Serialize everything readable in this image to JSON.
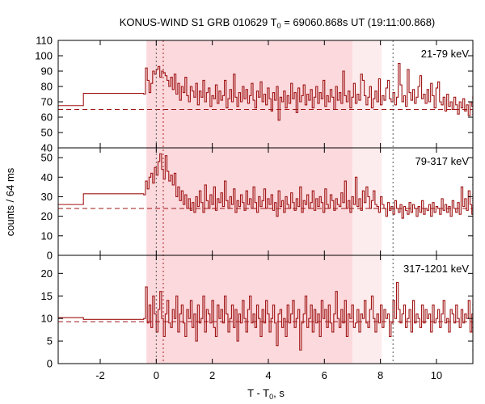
{
  "chart_data": {
    "type": "line",
    "title": "KONUS-WIND S1 GRB 010629 T",
    "title_sub": "0",
    "title_rest": " = 69060.868s UT (19:11:00.868)",
    "xlabel": "T - T",
    "xlabel_sub": "0",
    "xlabel_rest": ", s",
    "ylabel": "counts / 64 ms",
    "xlim": [
      -3.5,
      11.3
    ],
    "xticks": [
      -2,
      0,
      2,
      4,
      6,
      8,
      10
    ],
    "xtick_labels": [
      "-2",
      "0",
      "2",
      "4",
      "6",
      "8",
      "10"
    ],
    "shaded_intervals": [
      {
        "start": -0.35,
        "end": 7.0,
        "color": "#fbd9dd"
      },
      {
        "start": 7.0,
        "end": 8.05,
        "color": "#fdeced"
      }
    ],
    "vlines": [
      {
        "x": 0.0,
        "style": "dotted",
        "color": "#555555"
      },
      {
        "x": 0.25,
        "style": "dotted",
        "color": "#aa2222"
      },
      {
        "x": 8.45,
        "style": "dotted",
        "color": "#555555"
      }
    ],
    "line_color": "#a01515",
    "panels": [
      {
        "band": "21-79 keV",
        "ylim": [
          40,
          110
        ],
        "yticks": [
          40,
          50,
          60,
          70,
          80,
          90,
          100,
          110
        ],
        "ytick_labels": [
          "40",
          "50",
          "60",
          "70",
          "80",
          "90",
          "100",
          "110"
        ],
        "background": 65.0,
        "pre_steps": [
          {
            "x0": -3.5,
            "x1": -2.6,
            "y": 67.5
          },
          {
            "x0": -2.6,
            "x1": -0.45,
            "y": 75.5
          }
        ],
        "trigger_x0": -0.45,
        "dt": 0.064,
        "series": [
          {
            "values": [
              75,
              92,
              84,
              76,
              82,
              90,
              88,
              91,
              93,
              86,
              90,
              89,
              87,
              84,
              80,
              86,
              78,
              88,
              75,
              82,
              71,
              80,
              76,
              86,
              74,
              70,
              80,
              77,
              73,
              82,
              68,
              77,
              73,
              84,
              70,
              76,
              79,
              67,
              74,
              72,
              81,
              69,
              77,
              71,
              74,
              84,
              66,
              72,
              78,
              70,
              88,
              73,
              67,
              76,
              70,
              80,
              72,
              78,
              69,
              74,
              82,
              71,
              66,
              77,
              73,
              83,
              70,
              75,
              68,
              79,
              72,
              64,
              76,
              71,
              80,
              58,
              73,
              70,
              77,
              66,
              74,
              69,
              82,
              72,
              76,
              63,
              79,
              70,
              74,
              81,
              68,
              75,
              71,
              78,
              66,
              73,
              80,
              69,
              76,
              72,
              84,
              67,
              74,
              70,
              78,
              73,
              65,
              80,
              71,
              76,
              69,
              90,
              74,
              70,
              77,
              66,
              73,
              82,
              69,
              75,
              71,
              88,
              84,
              74,
              68,
              73,
              80,
              66,
              72,
              77,
              70,
              85,
              68,
              74,
              71,
              79,
              84,
              72,
              70,
              76,
              68,
              73,
              95,
              81,
              70,
              74,
              67,
              91,
              76,
              71,
              78,
              69,
              73,
              80,
              87,
              72,
              75,
              69,
              78,
              70,
              82,
              74,
              66,
              79,
              83,
              70,
              68,
              73,
              64,
              75,
              67,
              70,
              65,
              73,
              68,
              62,
              70,
              66,
              72,
              64,
              68,
              61,
              70,
              67,
              74,
              65,
              69,
              63,
              72,
              66,
              70,
              62,
              68,
              64,
              73,
              60,
              67,
              65,
              71,
              66,
              62,
              69,
              65,
              74,
              63,
              68,
              64,
              71,
              67,
              62,
              69,
              65,
              72,
              64,
              58,
              70,
              66,
              68,
              63,
              71,
              65,
              62
            ],
            "name": ""
          }
        ]
      },
      {
        "band": "79-317 keV",
        "ylim": [
          0,
          55
        ],
        "yticks": [
          0,
          10,
          20,
          30,
          40,
          50
        ],
        "ytick_labels": [
          "0",
          "10",
          "20",
          "30",
          "40",
          "50"
        ],
        "background": 24.0,
        "pre_steps": [
          {
            "x0": -3.5,
            "x1": -2.6,
            "y": 26.0
          },
          {
            "x0": -2.6,
            "x1": -0.45,
            "y": 31.5
          }
        ],
        "trigger_x0": -0.45,
        "dt": 0.064,
        "series": [
          {
            "values": [
              31,
              38,
              34,
              40,
              42,
              37,
              45,
              41,
              48,
              52,
              44,
              39,
              51,
              43,
              38,
              41,
              36,
              42,
              30,
              35,
              28,
              33,
              26,
              31,
              24,
              29,
              23,
              27,
              22,
              30,
              25,
              33,
              27,
              22,
              36,
              28,
              24,
              31,
              26,
              35,
              23,
              29,
              27,
              32,
              25,
              38,
              28,
              24,
              30,
              26,
              34,
              22,
              28,
              25,
              31,
              27,
              23,
              33,
              26,
              29,
              24,
              35,
              27,
              22,
              30,
              25,
              28,
              34,
              24,
              29,
              26,
              31,
              23,
              27,
              20,
              33,
              25,
              28,
              22,
              30,
              26,
              24,
              32,
              27,
              23,
              29,
              25,
              35,
              22,
              28,
              26,
              31,
              24,
              27,
              33,
              23,
              29,
              25,
              30,
              27,
              22,
              34,
              26,
              24,
              31,
              28,
              23,
              29,
              26,
              25,
              32,
              27,
              38,
              24,
              28,
              22,
              30,
              26,
              40,
              25,
              29,
              23,
              33,
              27,
              35,
              30,
              24,
              28,
              33,
              26,
              25,
              22,
              30,
              26,
              24,
              20,
              27,
              23,
              25,
              21,
              28,
              24,
              22,
              26,
              19,
              25,
              23,
              21,
              27,
              22,
              26,
              24,
              20,
              25,
              22,
              28,
              21,
              24,
              23,
              26,
              20,
              27,
              22,
              25,
              24,
              21,
              29,
              23,
              26,
              22,
              25,
              20,
              28,
              24,
              22,
              27,
              21,
              35,
              25,
              29,
              23,
              33,
              26,
              21,
              30,
              24,
              27,
              22,
              36,
              25,
              28,
              23,
              31,
              21,
              26,
              24,
              29,
              22,
              27,
              25,
              23,
              30,
              26,
              21,
              28,
              24,
              22,
              27,
              25,
              29,
              23,
              26,
              22,
              24,
              28,
              26
            ],
            "name": ""
          }
        ]
      },
      {
        "band": "317-1201 keV",
        "ylim": [
          0,
          24
        ],
        "yticks": [
          0,
          5,
          10,
          15,
          20
        ],
        "ytick_labels": [
          "0",
          "5",
          "10",
          "15",
          "20"
        ],
        "background": 9.3,
        "pre_steps": [
          {
            "x0": -3.5,
            "x1": -2.6,
            "y": 10.2
          },
          {
            "x0": -2.6,
            "x1": -0.45,
            "y": 9.8
          }
        ],
        "trigger_x0": -0.45,
        "dt": 0.064,
        "series": [
          {
            "values": [
              10,
              17,
              9,
              13,
              8,
              15,
              11,
              7,
              12,
              16,
              10,
              6,
              11,
              14,
              9,
              8,
              12,
              10,
              15,
              7,
              11,
              13,
              9,
              6,
              12,
              10,
              14,
              8,
              11,
              5,
              13,
              9,
              10,
              15,
              7,
              12,
              11,
              9,
              14,
              8,
              6,
              13,
              10,
              12,
              9,
              15,
              11,
              7,
              10,
              13,
              8,
              12,
              5,
              11,
              9,
              14,
              10,
              7,
              12,
              15,
              9,
              11,
              8,
              13,
              10,
              6,
              12,
              9,
              14,
              11,
              7,
              10,
              13,
              9,
              4,
              11,
              12,
              8,
              10,
              6,
              13,
              9,
              11,
              14,
              8,
              10,
              12,
              3,
              9,
              11,
              15,
              8,
              10,
              13,
              7,
              12,
              9,
              11,
              6,
              14,
              10,
              12,
              8,
              13,
              9,
              7,
              11,
              16,
              10,
              8,
              12,
              9,
              14,
              6,
              11,
              10,
              13,
              8,
              9,
              12,
              7,
              11,
              10,
              14,
              9,
              8,
              12,
              15,
              10,
              7,
              11,
              9,
              13,
              8,
              12,
              10,
              11,
              6,
              9,
              14,
              10,
              18,
              12,
              9,
              11,
              13,
              8,
              10,
              12,
              7,
              14,
              9,
              11,
              10,
              8,
              13,
              9,
              12,
              10,
              11,
              7,
              13,
              9,
              10,
              12,
              8,
              11,
              14,
              9,
              10,
              7,
              12,
              11,
              9,
              13,
              10,
              8,
              12,
              9,
              11,
              10,
              14,
              7,
              11,
              9,
              12,
              10,
              8,
              13,
              10,
              9,
              11,
              3,
              12,
              10,
              8,
              11,
              9,
              13,
              10,
              7,
              12,
              9,
              11,
              10,
              8,
              12,
              9,
              10
            ],
            "name": ""
          }
        ]
      }
    ]
  }
}
